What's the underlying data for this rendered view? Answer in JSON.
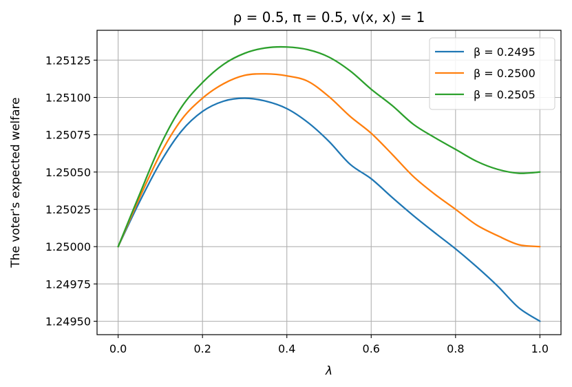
{
  "chart_data": {
    "type": "line",
    "title": "ρ = 0.5, π = 0.5, v(x, x) = 1",
    "xlabel": "λ",
    "ylabel": "The voter's expected welfare",
    "xlim": [
      -0.05,
      1.05
    ],
    "ylim": [
      1.24941,
      1.25145
    ],
    "xticks": [
      0.0,
      0.2,
      0.4,
      0.6,
      0.8,
      1.0
    ],
    "xtick_labels": [
      "0.0",
      "0.2",
      "0.4",
      "0.6",
      "0.8",
      "1.0"
    ],
    "yticks": [
      1.2495,
      1.24975,
      1.25,
      1.25025,
      1.2505,
      1.25075,
      1.251,
      1.25125
    ],
    "ytick_labels": [
      "1.24950",
      "1.24975",
      "1.25000",
      "1.25025",
      "1.25050",
      "1.25075",
      "1.25100",
      "1.25125"
    ],
    "grid": true,
    "legend_position": "top-right",
    "x": [
      0.0,
      0.05,
      0.1,
      0.15,
      0.2,
      0.25,
      0.3,
      0.35,
      0.4,
      0.45,
      0.5,
      0.55,
      0.6,
      0.65,
      0.7,
      0.75,
      0.8,
      0.85,
      0.9,
      0.95,
      1.0
    ],
    "series": [
      {
        "name": "β = 0.2495",
        "color": "#1f77b4",
        "values": [
          1.25,
          1.250296,
          1.250564,
          1.250774,
          1.250906,
          1.250975,
          1.250995,
          1.250975,
          1.250925,
          1.250832,
          1.250705,
          1.250552,
          1.250455,
          1.250329,
          1.250208,
          1.250095,
          1.249985,
          1.249865,
          1.249735,
          1.24959,
          1.2495
        ]
      },
      {
        "name": "β = 0.2500",
        "color": "#ff7f0e",
        "values": [
          1.25,
          1.250322,
          1.25062,
          1.25085,
          1.250995,
          1.251092,
          1.251148,
          1.251158,
          1.251145,
          1.251108,
          1.251005,
          1.250873,
          1.25076,
          1.250618,
          1.25047,
          1.250353,
          1.25025,
          1.250145,
          1.250073,
          1.250013,
          1.25
        ]
      },
      {
        "name": "β = 0.2505",
        "color": "#2ca02c",
        "values": [
          1.25,
          1.250345,
          1.250678,
          1.250934,
          1.2511,
          1.251222,
          1.251296,
          1.251332,
          1.251338,
          1.25132,
          1.25127,
          1.251178,
          1.251055,
          1.250945,
          1.25082,
          1.250732,
          1.250652,
          1.250572,
          1.250518,
          1.250492,
          1.2505
        ]
      }
    ]
  }
}
